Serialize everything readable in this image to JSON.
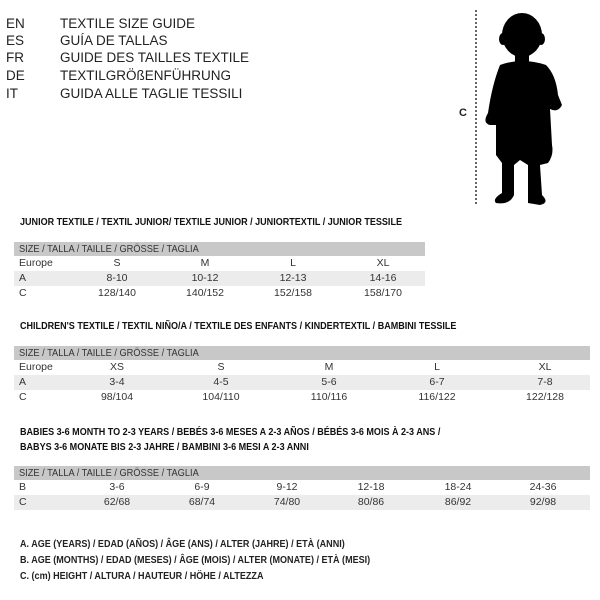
{
  "languages": [
    {
      "code": "EN",
      "label": "TEXTILE SIZE GUIDE"
    },
    {
      "code": "ES",
      "label": "GUÍA DE TALLAS"
    },
    {
      "code": "FR",
      "label": "GUIDE DES TAILLES TEXTILE"
    },
    {
      "code": "DE",
      "label": "TEXTILGRÖßENFÜHRUNG"
    },
    {
      "code": "IT",
      "label": "GUIDA ALLE TAGLIE TESSILI"
    }
  ],
  "figure": {
    "height_label": "C",
    "icon": "child-silhouette"
  },
  "size_header": "SIZE / TALLA / TAILLE / GRÖSSE / TAGLIA",
  "junior": {
    "title": "JUNIOR TEXTILE / TEXTIL JUNIOR/ TEXTILE JUNIOR / JUNIORTEXTIL / JUNIOR TESSILE",
    "rows": [
      {
        "label": "Europe",
        "values": [
          "S",
          "M",
          "L",
          "XL"
        ]
      },
      {
        "label": "A",
        "values": [
          "8-10",
          "10-12",
          "12-13",
          "14-16"
        ]
      },
      {
        "label": "C",
        "values": [
          "128/140",
          "140/152",
          "152/158",
          "158/170"
        ]
      }
    ]
  },
  "children": {
    "title": "CHILDREN'S TEXTILE / TEXTIL NIÑO/A / TEXTILE DES ENFANTS / KINDERTEXTIL / BAMBINI TESSILE",
    "rows": [
      {
        "label": "Europe",
        "values": [
          "XS",
          "S",
          "M",
          "L",
          "XL"
        ]
      },
      {
        "label": "A",
        "values": [
          "3-4",
          "4-5",
          "5-6",
          "6-7",
          "7-8"
        ]
      },
      {
        "label": "C",
        "values": [
          "98/104",
          "104/110",
          "110/116",
          "116/122",
          "122/128"
        ]
      }
    ]
  },
  "babies": {
    "title_line1": "BABIES 3-6 MONTH TO 2-3 YEARS / BEBÉS 3-6 MESES A 2-3 AÑOS / BÉBÉS 3-6 MOIS À 2-3 ANS /",
    "title_line2": "BABYS 3-6 MONATE BIS 2-3 JAHRE / BAMBINI 3-6 MESI A 2-3 ANNI",
    "rows": [
      {
        "label": "B",
        "values": [
          "3-6",
          "6-9",
          "9-12",
          "12-18",
          "18-24",
          "24-36"
        ]
      },
      {
        "label": "C",
        "values": [
          "62/68",
          "68/74",
          "74/80",
          "80/86",
          "86/92",
          "92/98"
        ]
      }
    ]
  },
  "legend": [
    "A. AGE (YEARS) / EDAD (AÑOS) / ÂGE (ANS) / ALTER (JAHRE) / ETÀ (ANNI)",
    "B. AGE (MONTHS) / EDAD (MESES) / ÂGE (MOIS) / ALTER (MONATE) / ETÀ (MESI)",
    "C. (cm) HEIGHT / ALTURA / HAUTEUR / HÖHE / ALTEZZA"
  ]
}
